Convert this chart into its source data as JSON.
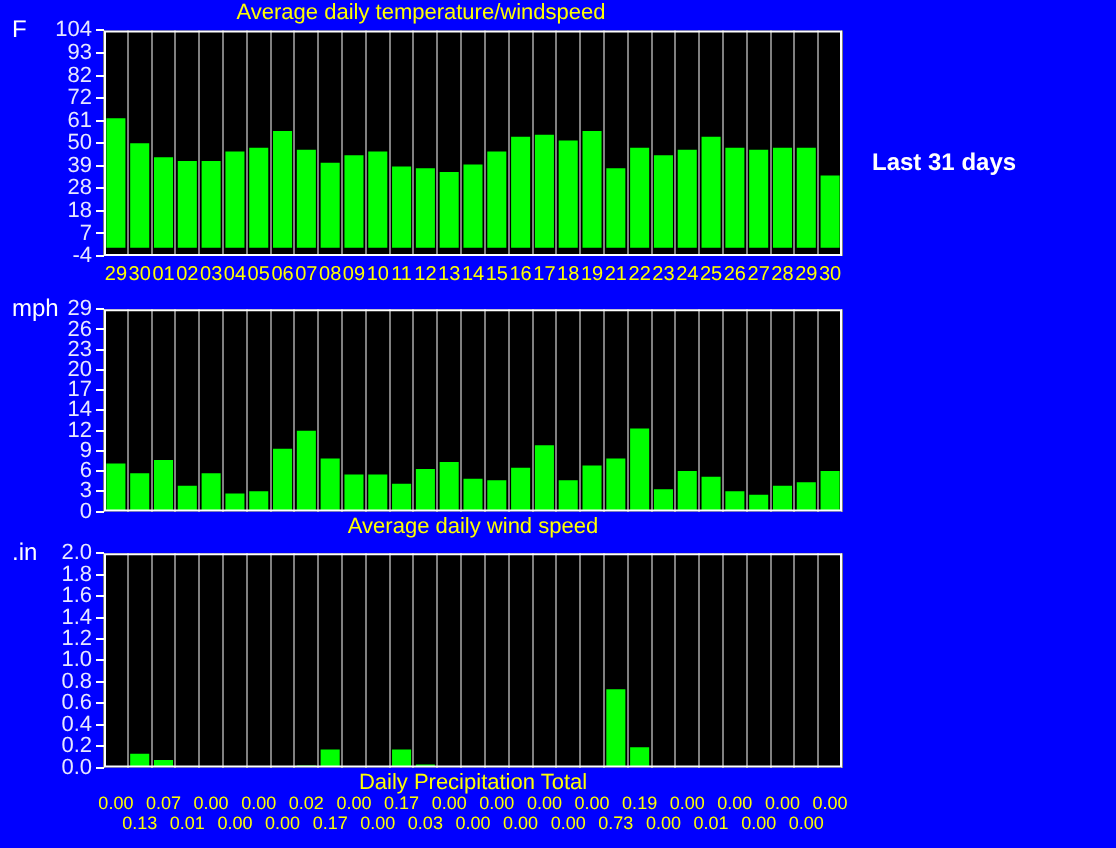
{
  "chart_data": [
    {
      "type": "bar",
      "title": "Average daily temperature/windspeed",
      "ylabel": "F",
      "categories": [
        "29",
        "30",
        "01",
        "02",
        "03",
        "04",
        "05",
        "06",
        "07",
        "08",
        "09",
        "10",
        "11",
        "12",
        "13",
        "14",
        "15",
        "16",
        "17",
        "18",
        "19",
        "21",
        "22",
        "23",
        "24",
        "25",
        "26",
        "27",
        "28",
        "29",
        "30"
      ],
      "values": [
        62,
        50,
        43.3,
        41.5,
        41.5,
        46,
        47.8,
        55.8,
        46.9,
        40.7,
        44.2,
        46,
        38.9,
        38,
        36.2,
        39.8,
        46,
        53.1,
        54,
        51.3,
        55.8,
        38,
        47.8,
        44.2,
        46.9,
        53.1,
        47.8,
        46.9,
        47.8,
        47.8,
        34.5
      ],
      "color": "#00ff00",
      "ylim": [
        -4,
        104
      ],
      "yticks": [
        -4,
        {
          "value": 6.8,
          "label": "7"
        },
        {
          "value": 17.6,
          "label": "18"
        },
        {
          "value": 28.4,
          "label": "28"
        },
        {
          "value": 39.2,
          "label": "39"
        },
        50,
        {
          "value": 60.8,
          "label": "61"
        },
        {
          "value": 71.6,
          "label": "72"
        },
        {
          "value": 82.4,
          "label": "82"
        },
        {
          "value": 93.2,
          "label": "93"
        },
        104
      ],
      "grid": "x",
      "annotations": [
        "Last 31 days"
      ]
    },
    {
      "type": "bar",
      "ylabel": "mph",
      "xlabel": "Average daily wind speed",
      "categories": [
        "29",
        "30",
        "01",
        "02",
        "03",
        "04",
        "05",
        "06",
        "07",
        "08",
        "09",
        "10",
        "11",
        "12",
        "13",
        "14",
        "15",
        "16",
        "17",
        "18",
        "19",
        "21",
        "22",
        "23",
        "24",
        "25",
        "26",
        "27",
        "28",
        "29",
        "30"
      ],
      "values": [
        6.9,
        5.5,
        7.4,
        3.7,
        5.5,
        2.6,
        2.9,
        9.0,
        11.6,
        7.6,
        5.3,
        5.3,
        4.0,
        6.1,
        7.1,
        4.7,
        4.5,
        6.3,
        9.5,
        4.5,
        6.6,
        7.6,
        11.9,
        3.2,
        5.8,
        5.0,
        2.9,
        2.4,
        3.7,
        4.2,
        5.8
      ],
      "color": "#00ff00",
      "ylim": [
        0,
        29
      ],
      "yticks": [
        0,
        {
          "value": 2.9,
          "label": "3"
        },
        {
          "value": 5.8,
          "label": "6"
        },
        {
          "value": 8.7,
          "label": "9"
        },
        {
          "value": 11.6,
          "label": "12"
        },
        {
          "value": 14.5,
          "label": "14"
        },
        {
          "value": 17.4,
          "label": "17"
        },
        {
          "value": 20.3,
          "label": "20"
        },
        {
          "value": 23.2,
          "label": "23"
        },
        {
          "value": 26.1,
          "label": "26"
        },
        29
      ],
      "grid": "x",
      "tick_labels": "y"
    },
    {
      "type": "bar",
      "ylabel": ".in",
      "xlabel": "Daily Precipitation Total",
      "categories": [
        "29",
        "30",
        "01",
        "02",
        "03",
        "04",
        "05",
        "06",
        "07",
        "08",
        "09",
        "10",
        "11",
        "12",
        "13",
        "14",
        "15",
        "16",
        "17",
        "18",
        "19",
        "21",
        "22",
        "23",
        "24",
        "25",
        "26",
        "27",
        "28",
        "29",
        "30"
      ],
      "values": [
        0,
        0.13,
        0.07,
        0.01,
        0,
        0,
        0,
        0,
        0.02,
        0.17,
        0,
        0,
        0.17,
        0.03,
        0,
        0,
        0,
        0,
        0,
        0,
        0,
        0.73,
        0.19,
        0,
        0,
        0.01,
        0,
        0,
        0,
        0,
        0
      ],
      "value_labels": [
        "0.00",
        "0.13",
        "0.07",
        "0.01",
        "0.00",
        "0.00",
        "0.00",
        "0.00",
        "0.02",
        "0.17",
        "0.00",
        "0.00",
        "0.17",
        "0.03",
        "0.00",
        "0.00",
        "0.00",
        "0.00",
        "0.00",
        "0.00",
        "0.00",
        "0.73",
        "0.19",
        "0.00",
        "0.00",
        "0.01",
        "0.00",
        "0.00",
        "0.00",
        "0.00",
        "0.00"
      ],
      "color": "#00ff00",
      "ylim": [
        0,
        2
      ],
      "yticks": [
        {
          "value": 0,
          "label": "0.0"
        },
        0.2,
        0.4,
        0.6,
        0.8,
        {
          "value": 1,
          "label": "1.0"
        },
        1.2,
        1.4,
        1.6,
        1.8,
        {
          "value": 2,
          "label": "2.0"
        }
      ],
      "grid": "x",
      "tick_labels": "y"
    }
  ]
}
